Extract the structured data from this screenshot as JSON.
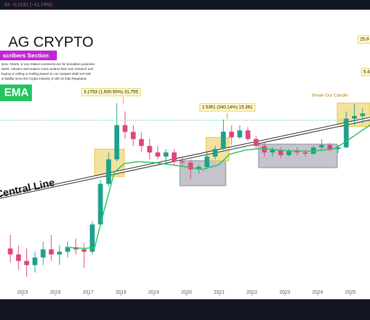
{
  "chart_data": {
    "type": "candlestick",
    "ticker": "43 −0.2161 (−11.74%)",
    "title": "AG CRYPTO",
    "banner": "scribers Section",
    "disclaimer": [
      "lysis, Charts, or any related comments are for simulation purposes",
      "alerts. Viewers and readers must conduct their own research and",
      "buying or selling or holding based on our analysis shall not hold",
      "al liability since the Crypto industry is still not fully Regulated."
    ],
    "ema_label": "EMA",
    "yscale": "log",
    "xlim": [
      2014.31,
      2025.6
    ],
    "ylim": [
      8,
      3000000
    ],
    "xticks": [
      2015,
      2016,
      2017,
      2018,
      2019,
      2020,
      2021,
      2022,
      2023,
      2024,
      2025
    ],
    "up_color": "#1fa08d",
    "down_color": "#e0457b",
    "candles": {
      "x": [
        2014.625,
        2014.875,
        2015.125,
        2015.375,
        2015.625,
        2015.875,
        2016.125,
        2016.375,
        2016.625,
        2016.875,
        2017.125,
        2017.375,
        2017.625,
        2017.875,
        2018.125,
        2018.375,
        2018.625,
        2018.875,
        2019.125,
        2019.375,
        2019.625,
        2019.875,
        2020.125,
        2020.375,
        2020.625,
        2020.875,
        2021.125,
        2021.375,
        2021.625,
        2021.875,
        2022.125,
        2022.375,
        2022.625,
        2022.875,
        2023.125,
        2023.375,
        2023.625,
        2023.875,
        2024.125,
        2024.375,
        2024.625,
        2024.875,
        2025.125,
        2025.375
      ],
      "open": [
        52,
        40,
        30,
        25,
        35,
        50,
        40,
        45,
        55,
        50,
        45,
        150,
        900,
        2650,
        12000,
        8900,
        6500,
        4800,
        3600,
        3000,
        3600,
        2400,
        2300,
        1700,
        1900,
        3000,
        4200,
        9000,
        7000,
        9500,
        6500,
        4800,
        3600,
        4000,
        3200,
        3800,
        3600,
        3400,
        4500,
        5000,
        4200,
        4500,
        16000,
        18000
      ],
      "high": [
        95,
        60,
        52,
        45,
        70,
        95,
        60,
        70,
        80,
        65,
        173,
        1067,
        3600,
        31755,
        22000,
        12000,
        8900,
        6500,
        4800,
        4200,
        4200,
        3000,
        2650,
        2100,
        3600,
        4800,
        15361,
        12000,
        12000,
        11000,
        7500,
        5500,
        4500,
        4500,
        4200,
        4500,
        4000,
        4800,
        6500,
        5500,
        5000,
        22000,
        30000,
        25000
      ],
      "low": [
        28,
        20,
        15,
        18,
        25,
        30,
        25,
        35,
        40,
        22,
        40,
        140,
        800,
        2400,
        6500,
        4800,
        3600,
        2650,
        2650,
        2300,
        2000,
        1900,
        1100,
        1400,
        1800,
        2650,
        4000,
        5000,
        6500,
        6000,
        4200,
        3000,
        3000,
        2800,
        3000,
        3200,
        3000,
        3300,
        4000,
        3800,
        3500,
        4400,
        12000,
        13000
      ],
      "close": [
        40,
        30,
        25,
        35,
        50,
        40,
        45,
        55,
        50,
        45,
        150,
        900,
        2650,
        12000,
        8900,
        6500,
        4800,
        3600,
        3000,
        3600,
        2400,
        2300,
        1700,
        1900,
        3000,
        4200,
        9000,
        7000,
        9500,
        6500,
        4800,
        3600,
        4000,
        3200,
        3800,
        3600,
        3400,
        4500,
        5000,
        4200,
        4500,
        16000,
        18000,
        20000
      ]
    },
    "series": [
      {
        "name": "EMA",
        "color": "#22c55e",
        "x": [
          2016.3,
          2016.9,
          2017.2,
          2017.5,
          2017.8,
          2018.1,
          2018.5,
          2019.0,
          2019.5,
          2020.0,
          2020.5,
          2021.0,
          2021.3,
          2021.8,
          2022.3,
          2023.0,
          2023.8,
          2024.5,
          2024.9,
          2025.3,
          2025.6
        ],
        "values": [
          55,
          52,
          55,
          300,
          1500,
          2200,
          2400,
          2300,
          2100,
          1900,
          1700,
          2100,
          3300,
          4000,
          4300,
          3900,
          3800,
          4200,
          6000,
          9000,
          12000
        ]
      },
      {
        "name": "Central Line",
        "color": "#ffffff",
        "x": [
          2014.31,
          2025.6
        ],
        "values": [
          500,
          16000
        ]
      }
    ],
    "reference_line": {
      "value": 14900,
      "color": "#22c55e"
    },
    "zones": [
      {
        "x": [
          2017.2,
          2018.1
        ],
        "y": [
          1240,
          4170
        ],
        "color": "#e6c53c"
      },
      {
        "x": [
          2019.8,
          2021.2
        ],
        "y": [
          830,
          2500
        ],
        "color": "#8a8a9c"
      },
      {
        "x": [
          2020.6,
          2021.3
        ],
        "y": [
          2500,
          7000
        ],
        "color": "#e6c53c"
      },
      {
        "x": [
          2022.2,
          2024.6
        ],
        "y": [
          1840,
          5200
        ],
        "color": "#8a8a9c"
      },
      {
        "x": [
          2024.6,
          2025.6
        ],
        "y": [
          11300,
          31755
        ],
        "color": "#e6c53c"
      }
    ],
    "annotations": [
      "3.1753 (1,600.55%) 31,755",
      "1.5361 (340.14%) 15,361",
      "Break-Out Candle",
      "25.9",
      "5.4"
    ]
  }
}
